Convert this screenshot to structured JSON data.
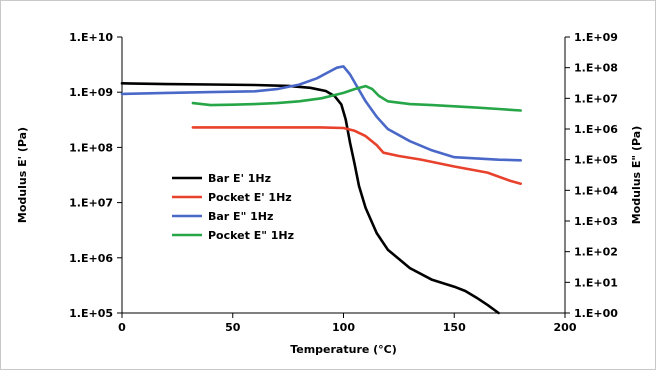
{
  "chart_data": {
    "type": "line",
    "xlabel": "Temperature (°C)",
    "ylabel": "Modulus E' (Pa)",
    "y2label": "Modulus E\" (Pa)",
    "xlim": [
      0,
      200
    ],
    "ylim": [
      100000,
      10000000000
    ],
    "y2lim": [
      1,
      1000000000
    ],
    "yscale": "log",
    "y2scale": "log",
    "grid": false,
    "legend_position": "center-left",
    "x_ticks": [
      0,
      50,
      100,
      150,
      200
    ],
    "x_tick_labels": [
      "0",
      "50",
      "100",
      "150",
      "200"
    ],
    "y_ticks": [
      100000,
      1000000,
      10000000,
      100000000,
      1000000000,
      10000000000
    ],
    "y_tick_labels": [
      "1.E+05",
      "1.E+06",
      "1.E+07",
      "1.E+08",
      "1.E+09",
      "1.E+10"
    ],
    "y2_ticks": [
      1,
      10,
      100,
      1000,
      10000,
      100000,
      1000000,
      10000000,
      100000000,
      1000000000
    ],
    "y2_tick_labels": [
      "1.E+00",
      "1.E+01",
      "1.E+02",
      "1.E+03",
      "1.E+04",
      "1.E+05",
      "1.E+06",
      "1.E+07",
      "1.E+08",
      "1.E+09"
    ],
    "series": [
      {
        "name": "Bar E' 1Hz",
        "color": "#000000",
        "axis": "left",
        "x": [
          0,
          20,
          40,
          60,
          75,
          85,
          92,
          96,
          99,
          101,
          103,
          105,
          107,
          110,
          115,
          120,
          130,
          140,
          150,
          155,
          160,
          165,
          170
        ],
        "y": [
          1450000000,
          1400000000,
          1380000000,
          1350000000,
          1300000000,
          1200000000,
          1050000000,
          850000000,
          600000000,
          320000000,
          120000000,
          50000000,
          20000000,
          8000000,
          2800000,
          1400000,
          650000,
          400000,
          300000,
          250000,
          190000,
          140000,
          100000
        ]
      },
      {
        "name": "Pocket E' 1Hz",
        "color": "#e8412c",
        "axis": "left",
        "x": [
          32,
          50,
          70,
          90,
          100,
          105,
          110,
          115,
          118,
          125,
          135,
          150,
          165,
          175,
          180
        ],
        "y": [
          230000000,
          230000000,
          230000000,
          230000000,
          225000000,
          200000000,
          160000000,
          110000000,
          80000000,
          70000000,
          60000000,
          45000000,
          35000000,
          25000000,
          22000000
        ]
      },
      {
        "name": "Bar E\" 1Hz",
        "color": "#4a68c8",
        "axis": "right",
        "x": [
          0,
          20,
          40,
          60,
          70,
          80,
          88,
          93,
          97,
          100,
          103,
          106,
          110,
          115,
          120,
          130,
          140,
          150,
          160,
          170,
          180
        ],
        "y": [
          14000000,
          15000000,
          16000000,
          17000000,
          20000000,
          28000000,
          45000000,
          70000000,
          100000000,
          110000000,
          60000000,
          25000000,
          8000000,
          2500000,
          1000000,
          400000,
          200000,
          120000,
          110000,
          100000,
          95000
        ]
      },
      {
        "name": "Pocket E\" 1Hz",
        "color": "#27a648",
        "axis": "right",
        "x": [
          32,
          40,
          50,
          60,
          70,
          80,
          90,
          100,
          105,
          110,
          113,
          116,
          120,
          130,
          140,
          150,
          160,
          170,
          180
        ],
        "y": [
          7000000,
          6000000,
          6200000,
          6500000,
          7000000,
          8000000,
          10000000,
          15000000,
          20000000,
          25000000,
          20000000,
          12000000,
          8000000,
          6500000,
          6000000,
          5500000,
          5000000,
          4500000,
          4000000
        ]
      }
    ]
  }
}
